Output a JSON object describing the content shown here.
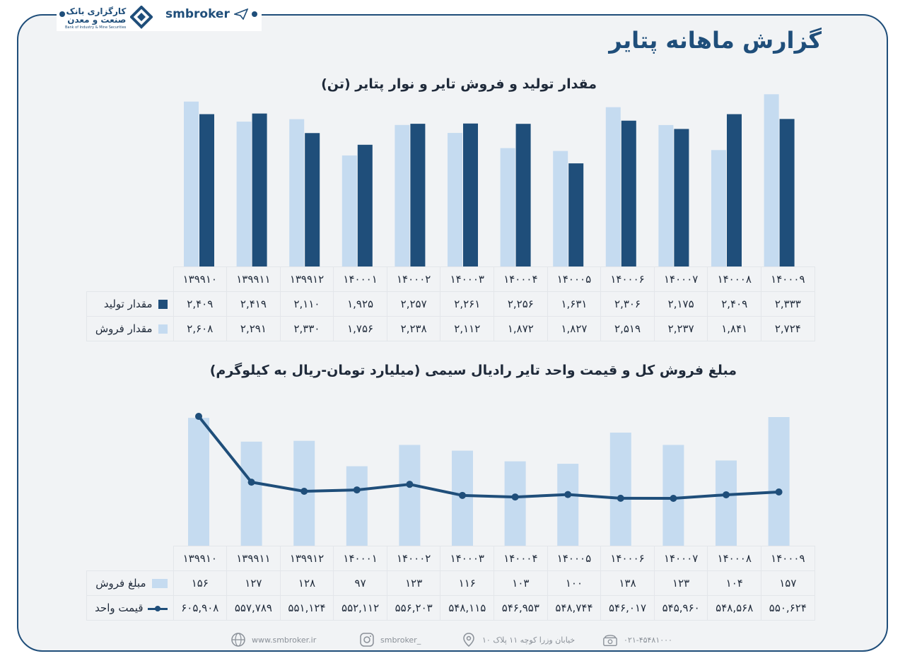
{
  "header": {
    "logo_main": "کارگزاری بانک",
    "logo_sub": "صنعت و معدن",
    "logo_en": "Bank of Industry & Mine Securities",
    "brand": "smbroker",
    "title": "گزارش ماهانه پتایر"
  },
  "colors": {
    "dark": "#1f4e7a",
    "light": "#c5dbf0",
    "frame": "#1f4e7a"
  },
  "chart_data": [
    {
      "type": "bar",
      "title": "مقدار تولید و فروش تایر و نوار پتایر (تن)",
      "categories": [
        "۱۳۹۹۱۰",
        "۱۳۹۹۱۱",
        "۱۳۹۹۱۲",
        "۱۴۰۰۰۱",
        "۱۴۰۰۰۲",
        "۱۴۰۰۰۳",
        "۱۴۰۰۰۴",
        "۱۴۰۰۰۵",
        "۱۴۰۰۰۶",
        "۱۴۰۰۰۷",
        "۱۴۰۰۰۸",
        "۱۴۰۰۰۹"
      ],
      "series": [
        {
          "name": "مقدار تولید",
          "color": "#1f4e7a",
          "values": [
            2409,
            2419,
            2110,
            1925,
            2257,
            2261,
            2256,
            1631,
            2306,
            2175,
            2409,
            2333
          ],
          "labels": [
            "۲,۴۰۹",
            "۲,۴۱۹",
            "۲,۱۱۰",
            "۱,۹۲۵",
            "۲,۲۵۷",
            "۲,۲۶۱",
            "۲,۲۵۶",
            "۱,۶۳۱",
            "۲,۳۰۶",
            "۲,۱۷۵",
            "۲,۴۰۹",
            "۲,۳۳۳"
          ]
        },
        {
          "name": "مقدار فروش",
          "color": "#c5dbf0",
          "values": [
            2608,
            2291,
            2330,
            1756,
            2238,
            2112,
            1872,
            1827,
            2519,
            2237,
            1841,
            2724
          ],
          "labels": [
            "۲,۶۰۸",
            "۲,۲۹۱",
            "۲,۳۳۰",
            "۱,۷۵۶",
            "۲,۲۳۸",
            "۲,۱۱۲",
            "۱,۸۷۲",
            "۱,۸۲۷",
            "۲,۵۱۹",
            "۲,۲۳۷",
            "۱,۸۴۱",
            "۲,۷۲۴"
          ]
        }
      ],
      "ylim": [
        0,
        2750
      ],
      "grid": false,
      "legend": "table-left"
    },
    {
      "type": "bar+line",
      "title": "مبلغ فروش کل و قیمت واحد تایر رادیال سیمی  (میلیارد تومان-ریال به کیلوگرم)",
      "categories": [
        "۱۳۹۹۱۰",
        "۱۳۹۹۱۱",
        "۱۳۹۹۱۲",
        "۱۴۰۰۰۱",
        "۱۴۰۰۰۲",
        "۱۴۰۰۰۳",
        "۱۴۰۰۰۴",
        "۱۴۰۰۰۵",
        "۱۴۰۰۰۶",
        "۱۴۰۰۰۷",
        "۱۴۰۰۰۸",
        "۱۴۰۰۰۹"
      ],
      "series": [
        {
          "name": "مبلغ فروش",
          "type": "bar",
          "color": "#c5dbf0",
          "values": [
            156,
            127,
            128,
            97,
            123,
            116,
            103,
            100,
            138,
            123,
            104,
            157
          ],
          "labels": [
            "۱۵۶",
            "۱۲۷",
            "۱۲۸",
            "۹۷",
            "۱۲۳",
            "۱۱۶",
            "۱۰۳",
            "۱۰۰",
            "۱۳۸",
            "۱۲۳",
            "۱۰۴",
            "۱۵۷"
          ]
        },
        {
          "name": "قیمت واحد",
          "type": "line",
          "color": "#1f4e7a",
          "values": [
            605908,
            557789,
            551124,
            552112,
            556203,
            548115,
            546953,
            548744,
            546017,
            545960,
            548568,
            550624
          ],
          "labels": [
            "۶۰۵,۹۰۸",
            "۵۵۷,۷۸۹",
            "۵۵۱,۱۲۴",
            "۵۵۲,۱۱۲",
            "۵۵۶,۲۰۳",
            "۵۴۸,۱۱۵",
            "۵۴۶,۹۵۳",
            "۵۴۸,۷۴۴",
            "۵۴۶,۰۱۷",
            "۵۴۵,۹۶۰",
            "۵۴۸,۵۶۸",
            "۵۵۰,۶۲۴"
          ]
        }
      ],
      "grid": false,
      "legend": "table-left"
    }
  ],
  "footer": {
    "website": "www.smbroker.ir",
    "instagram": "smbroker_",
    "address": "خیابان وزرا کوچه ۱۱ پلاک ۱۰",
    "phone": "۰۲۱-۴۵۴۸۱۰۰۰"
  }
}
